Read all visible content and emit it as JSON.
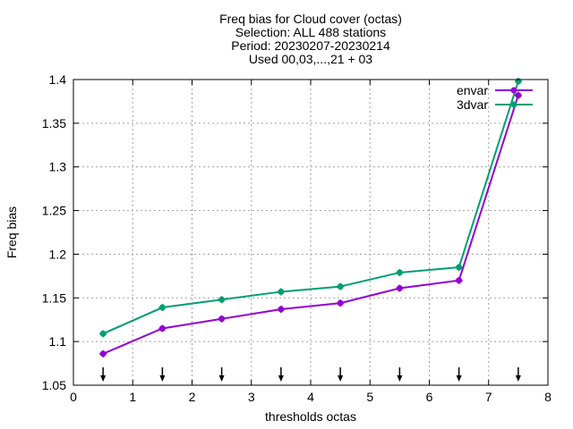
{
  "chart_data": {
    "type": "line",
    "title_lines": [
      "Freq bias  for Cloud cover (octas)",
      "Selection: ALL    488 stations",
      "Period: 20230207-20230214",
      "Used 00,03,...,21 + 03"
    ],
    "xlabel": "thresholds octas",
    "ylabel": "Freq bias",
    "xlim": [
      0,
      8
    ],
    "ylim": [
      1.05,
      1.4
    ],
    "xticks": [
      "0",
      "1",
      "2",
      "3",
      "4",
      "5",
      "6",
      "7",
      "8"
    ],
    "yticks": [
      "1.05",
      "1.1",
      "1.15",
      "1.2",
      "1.25",
      "1.3",
      "1.35",
      "1.4"
    ],
    "grid": true,
    "legend_position": "top-right",
    "x": [
      0.5,
      1.5,
      2.5,
      3.5,
      4.5,
      5.5,
      6.5,
      7.5
    ],
    "series": [
      {
        "name": "envar",
        "color": "#9400d3",
        "values": [
          1.086,
          1.115,
          1.126,
          1.137,
          1.144,
          1.161,
          1.17,
          1.382
        ]
      },
      {
        "name": "3dvar",
        "color": "#009e73",
        "values": [
          1.109,
          1.139,
          1.148,
          1.157,
          1.163,
          1.179,
          1.185,
          1.398
        ]
      }
    ],
    "arrows_at": [
      0.5,
      1.5,
      2.5,
      3.5,
      4.5,
      5.5,
      6.5,
      7.5
    ]
  }
}
